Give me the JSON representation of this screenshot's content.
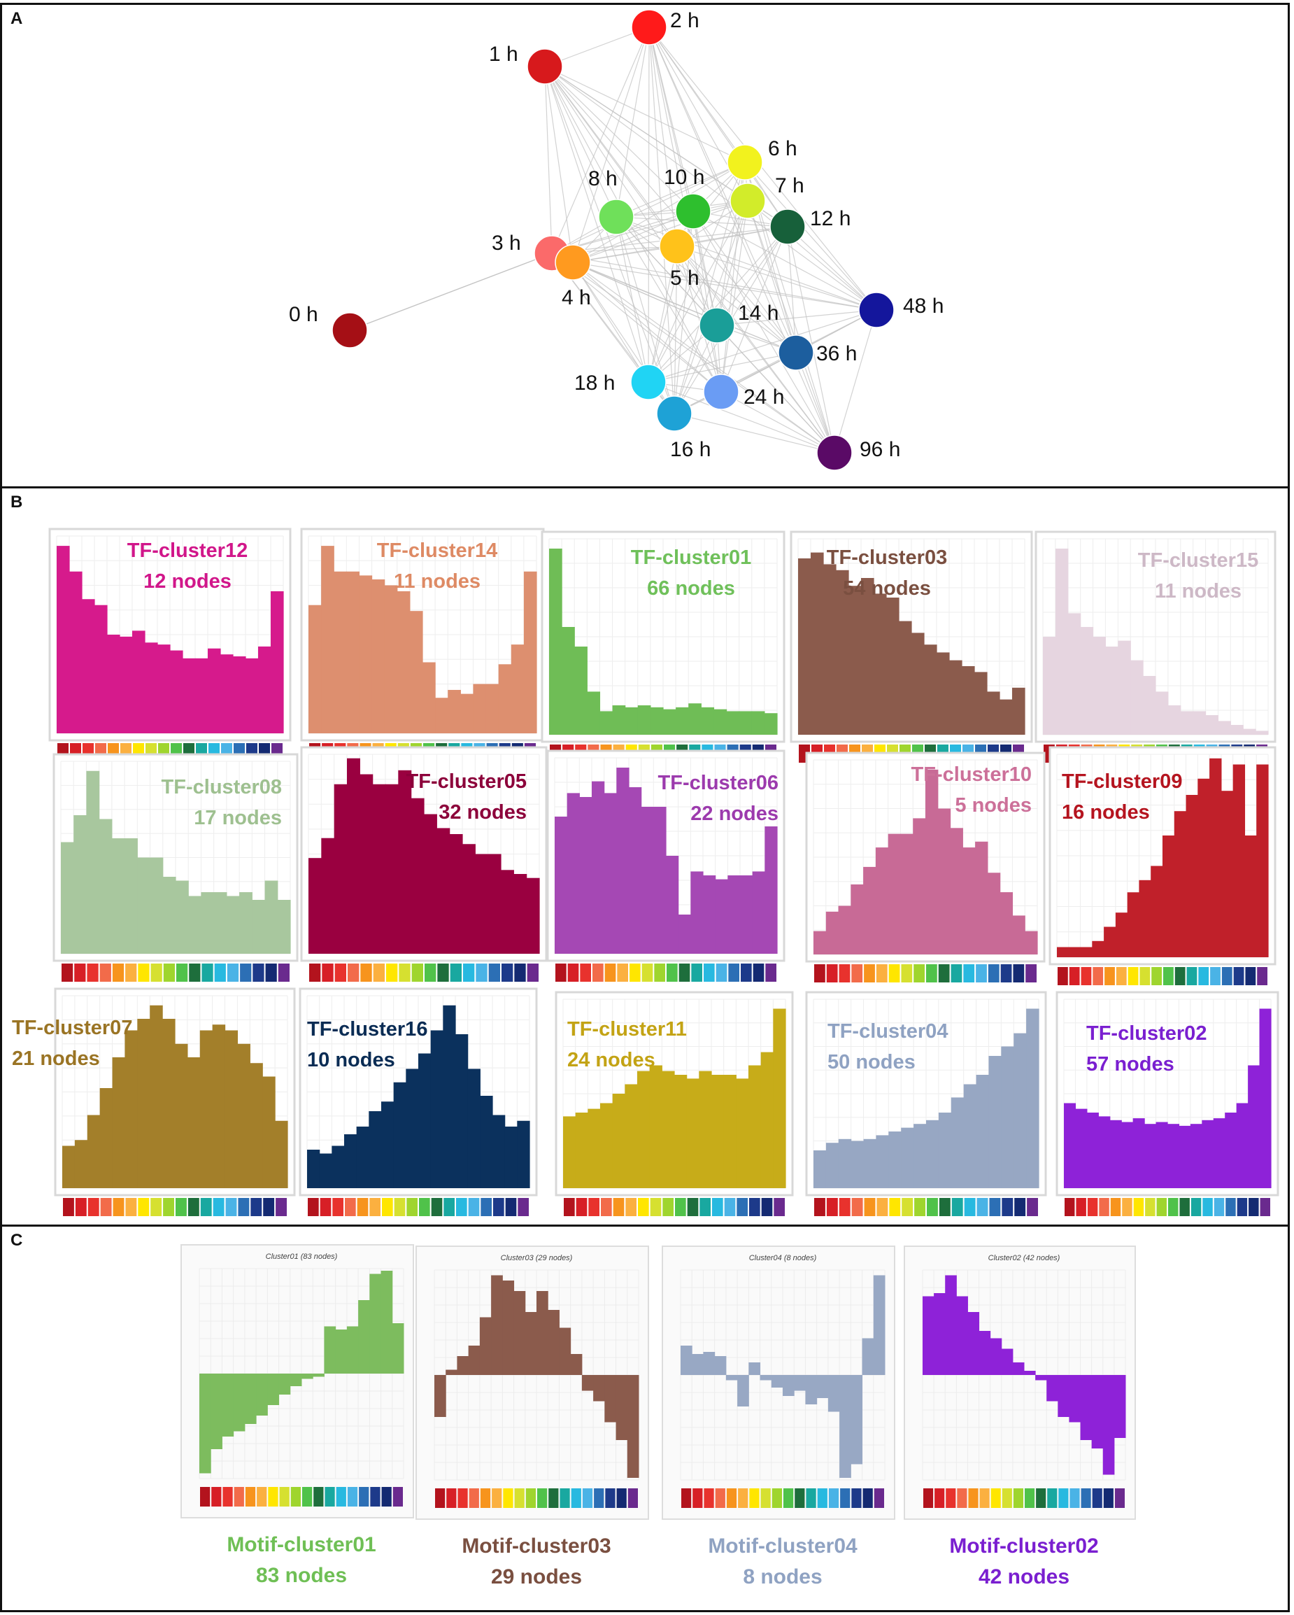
{
  "panels": {
    "a": {
      "label": "A"
    },
    "b": {
      "label": "B"
    },
    "c": {
      "label": "C"
    }
  },
  "time_palette": [
    "#b3131d",
    "#d71f26",
    "#e8322d",
    "#f26b4a",
    "#f7941d",
    "#fbb040",
    "#ffe600",
    "#d6e030",
    "#9fd52e",
    "#50c24a",
    "#1e6e3c",
    "#19a8a0",
    "#28b9e0",
    "#4ab3e6",
    "#2c6fb5",
    "#1d3a8a",
    "#142a72",
    "#6a2a8e"
  ],
  "network": {
    "nodes": [
      {
        "label": "0 h",
        "color": "#a50f15"
      },
      {
        "label": "1 h",
        "color": "#d7191c"
      },
      {
        "label": "2 h",
        "color": "#ff1a1a"
      },
      {
        "label": "3 h",
        "color": "#fb6a6a"
      },
      {
        "label": "4 h",
        "color": "#ff9a1f"
      },
      {
        "label": "5 h",
        "color": "#ffc21a"
      },
      {
        "label": "6 h",
        "color": "#f2f21e"
      },
      {
        "label": "7 h",
        "color": "#d2ec2a"
      },
      {
        "label": "8 h",
        "color": "#6fe05a"
      },
      {
        "label": "10 h",
        "color": "#2ebf2e"
      },
      {
        "label": "12 h",
        "color": "#17603a"
      },
      {
        "label": "14 h",
        "color": "#1a9e98"
      },
      {
        "label": "16 h",
        "color": "#1ea2d6"
      },
      {
        "label": "18 h",
        "color": "#20d4f4"
      },
      {
        "label": "24 h",
        "color": "#6a9cf4"
      },
      {
        "label": "36 h",
        "color": "#1c5e9e"
      },
      {
        "label": "48 h",
        "color": "#14169c"
      },
      {
        "label": "96 h",
        "color": "#5a0a66"
      }
    ]
  },
  "tf_clusters": [
    {
      "name": "TF-cluster12",
      "nodes": "12 nodes",
      "color": "#d61a8c",
      "label_color": "#d1168a",
      "values": [
        95,
        82,
        68,
        65,
        50,
        49,
        52,
        46,
        45,
        42,
        38,
        38,
        43,
        40,
        39,
        38,
        44,
        72
      ]
    },
    {
      "name": "TF-cluster14",
      "nodes": "11 nodes",
      "color": "#dd8f6f",
      "label_color": "#de8a64",
      "values": [
        65,
        95,
        82,
        82,
        80,
        78,
        75,
        72,
        62,
        36,
        18,
        22,
        20,
        25,
        25,
        35,
        45,
        82
      ]
    },
    {
      "name": "TF-cluster01",
      "nodes": "66 nodes",
      "color": "#6fbd56",
      "label_color": "#6fc05a",
      "values": [
        95,
        55,
        45,
        22,
        12,
        15,
        14,
        15,
        14,
        13,
        14,
        16,
        14,
        13,
        12,
        12,
        12,
        11
      ]
    },
    {
      "name": "TF-cluster03",
      "nodes": "54 nodes",
      "color": "#8b5b4c",
      "label_color": "#7a4f40",
      "values": [
        90,
        93,
        87,
        84,
        76,
        80,
        72,
        70,
        58,
        52,
        46,
        42,
        38,
        35,
        32,
        22,
        18,
        24
      ]
    },
    {
      "name": "TF-cluster15",
      "nodes": "11 nodes",
      "color": "#e6d5e0",
      "label_color": "#cdb8c6",
      "values": [
        50,
        95,
        62,
        55,
        50,
        45,
        48,
        38,
        30,
        22,
        15,
        12,
        12,
        10,
        7,
        5,
        3,
        2
      ]
    },
    {
      "name": "TF-cluster08",
      "nodes": "17 nodes",
      "color": "#a8c79e",
      "label_color": "#9ec090",
      "values": [
        58,
        72,
        95,
        70,
        60,
        60,
        50,
        50,
        40,
        38,
        30,
        32,
        32,
        30,
        32,
        28,
        38,
        28
      ]
    },
    {
      "name": "TF-cluster05",
      "nodes": "32 nodes",
      "color": "#9a0040",
      "label_color": "#8c003a",
      "values": [
        48,
        58,
        85,
        98,
        90,
        85,
        85,
        92,
        78,
        70,
        63,
        60,
        55,
        50,
        50,
        42,
        40,
        38
      ]
    },
    {
      "name": "TF-cluster06",
      "nodes": "22 nodes",
      "color": "#a548b4",
      "label_color": "#9c3aad",
      "values": [
        70,
        82,
        80,
        88,
        82,
        95,
        85,
        75,
        75,
        50,
        20,
        42,
        40,
        38,
        40,
        40,
        42,
        65
      ]
    },
    {
      "name": "TF-cluster10",
      "nodes": "5 nodes",
      "color": "#c86a96",
      "label_color": "#cc7099",
      "values": [
        12,
        22,
        25,
        36,
        45,
        55,
        62,
        62,
        70,
        95,
        75,
        65,
        55,
        58,
        42,
        32,
        20,
        12
      ]
    },
    {
      "name": "TF-cluster09",
      "nodes": "16 nodes",
      "color": "#c0202a",
      "label_color": "#b5141f",
      "values": [
        5,
        5,
        5,
        8,
        15,
        22,
        32,
        38,
        45,
        60,
        72,
        80,
        88,
        98,
        82,
        95,
        60,
        95
      ]
    },
    {
      "name": "TF-cluster07",
      "nodes": "21 nodes",
      "color": "#a37f2a",
      "label_color": "#9a7424",
      "values": [
        22,
        25,
        38,
        52,
        68,
        82,
        88,
        95,
        88,
        75,
        68,
        82,
        85,
        82,
        75,
        65,
        58,
        35
      ]
    },
    {
      "name": "TF-cluster16",
      "nodes": "10 nodes",
      "color": "#0b315d",
      "label_color": "#0a2c54",
      "values": [
        20,
        18,
        22,
        28,
        32,
        40,
        45,
        55,
        62,
        70,
        82,
        95,
        80,
        62,
        48,
        38,
        32,
        35
      ]
    },
    {
      "name": "TF-cluster11",
      "nodes": "24 nodes",
      "color": "#c7ac19",
      "label_color": "#c3a314",
      "values": [
        38,
        40,
        42,
        45,
        50,
        55,
        62,
        65,
        62,
        60,
        58,
        62,
        60,
        60,
        58,
        65,
        72,
        95
      ]
    },
    {
      "name": "TF-cluster04",
      "nodes": "50 nodes",
      "color": "#97a7c3",
      "label_color": "#8fa2c2",
      "values": [
        20,
        24,
        26,
        25,
        26,
        28,
        30,
        32,
        34,
        36,
        40,
        48,
        55,
        60,
        70,
        75,
        82,
        95
      ]
    },
    {
      "name": "TF-cluster02",
      "nodes": "57 nodes",
      "color": "#8e22d8",
      "label_color": "#7a1fd0",
      "values": [
        45,
        42,
        40,
        38,
        36,
        35,
        37,
        34,
        35,
        34,
        33,
        34,
        36,
        37,
        40,
        45,
        65,
        95
      ]
    }
  ],
  "motif_clusters": [
    {
      "name": "Motif-cluster01",
      "nodes": "83 nodes",
      "color": "#7dbc5e",
      "label_color": "#6fbf55",
      "header": "Cluster01 (83 nodes)",
      "values": [
        -95,
        -72,
        -60,
        -55,
        -48,
        -40,
        -30,
        -20,
        -12,
        -5,
        -3,
        45,
        42,
        45,
        70,
        95,
        98,
        48
      ]
    },
    {
      "name": "Motif-cluster03",
      "nodes": "29 nodes",
      "color": "#8b5b4c",
      "label_color": "#7a4f40",
      "header": "Cluster03 (29 nodes)",
      "values": [
        -40,
        5,
        18,
        28,
        55,
        95,
        90,
        80,
        60,
        80,
        62,
        45,
        20,
        -15,
        -25,
        -45,
        -62,
        -98
      ]
    },
    {
      "name": "Motif-cluster04",
      "nodes": "8 nodes",
      "color": "#98a8c4",
      "label_color": "#8fa2c2",
      "header": "Cluster04 (8 nodes)",
      "values": [
        28,
        20,
        22,
        18,
        -5,
        -30,
        12,
        -5,
        -12,
        -20,
        -15,
        -28,
        -22,
        -35,
        -98,
        -85,
        35,
        95
      ]
    },
    {
      "name": "Motif-cluster02",
      "nodes": "42 nodes",
      "color": "#8e22d8",
      "label_color": "#7a1fd0",
      "header": "Cluster02 (42 nodes)",
      "values": [
        75,
        78,
        95,
        75,
        60,
        42,
        35,
        25,
        12,
        4,
        -5,
        -25,
        -40,
        -45,
        -62,
        -70,
        -95,
        -60
      ]
    }
  ]
}
